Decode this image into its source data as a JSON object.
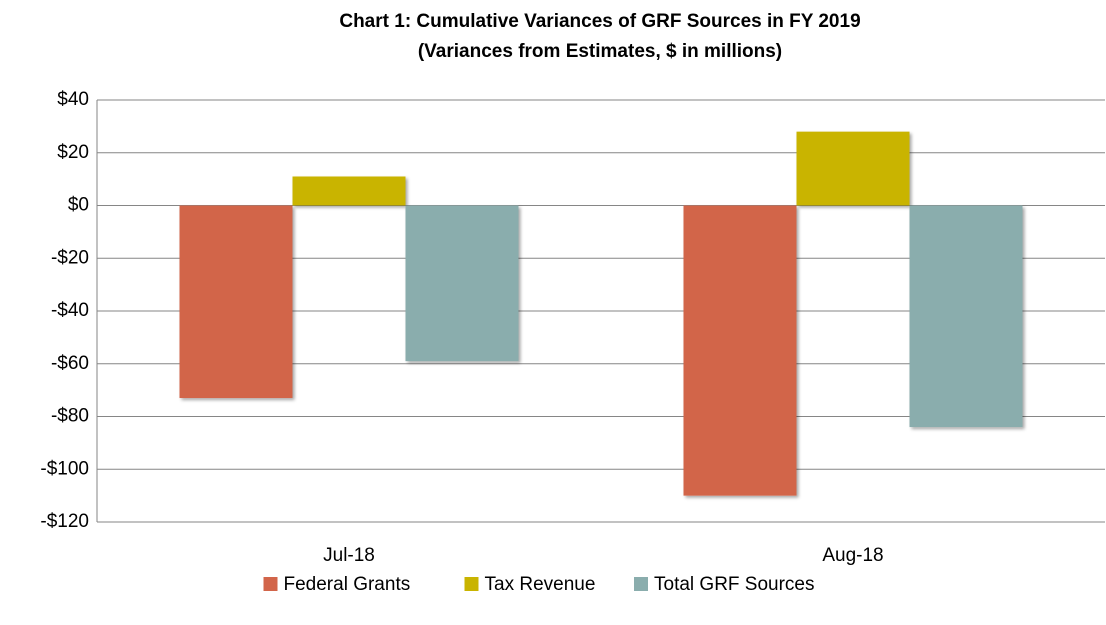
{
  "chart_data": {
    "type": "bar",
    "title": "Chart 1: Cumulative Variances of GRF Sources in FY 2019",
    "subtitle": "(Variances from Estimates, $ in millions)",
    "categories": [
      "Jul-18",
      "Aug-18"
    ],
    "series": [
      {
        "name": "Federal Grants",
        "color": "#d2654a",
        "values": [
          -73,
          -110
        ]
      },
      {
        "name": "Tax Revenue",
        "color": "#c9b400",
        "values": [
          11,
          28
        ]
      },
      {
        "name": "Total GRF Sources",
        "color": "#8aadad",
        "values": [
          -59,
          -84
        ]
      }
    ],
    "ylim": [
      -120,
      40
    ],
    "yticks": [
      {
        "value": -120,
        "label": "-$120"
      },
      {
        "value": -100,
        "label": "-$100"
      },
      {
        "value": -80,
        "label": "-$80"
      },
      {
        "value": -60,
        "label": "-$60"
      },
      {
        "value": -40,
        "label": "-$40"
      },
      {
        "value": -20,
        "label": "-$20"
      },
      {
        "value": 0,
        "label": "$0"
      },
      {
        "value": 20,
        "label": "$20"
      },
      {
        "value": 40,
        "label": "$40"
      }
    ],
    "grid": true,
    "legend": "bottom"
  }
}
